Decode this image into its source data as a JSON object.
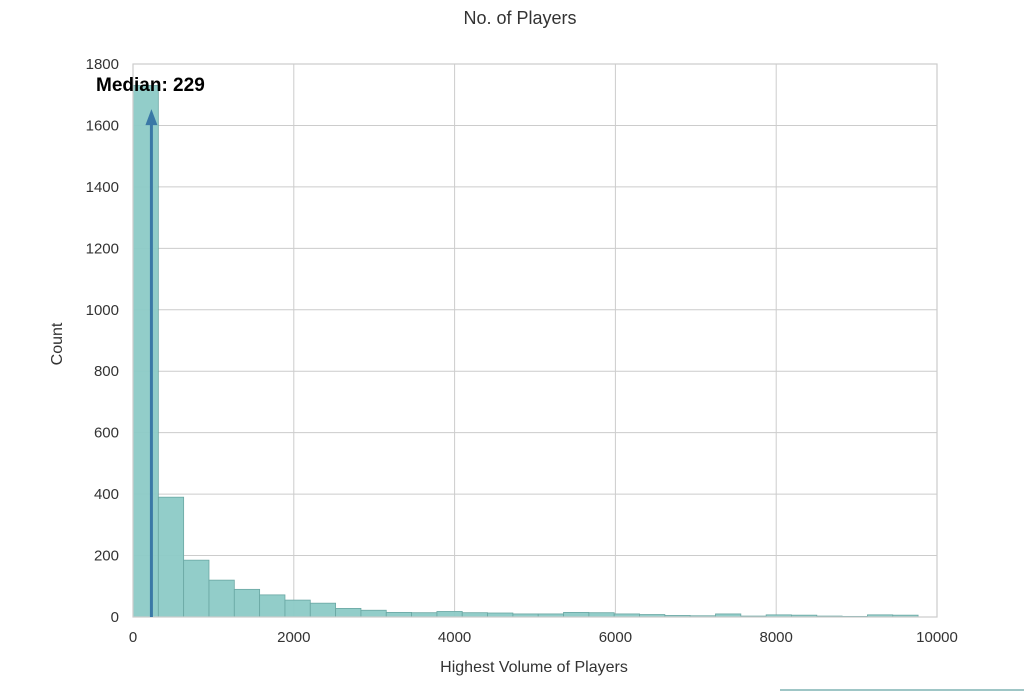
{
  "chart_data": {
    "type": "bar",
    "title": "No. of Players",
    "xlabel": "Highest Volume of Players",
    "ylabel": "Count",
    "xlim": [
      0,
      10000
    ],
    "ylim": [
      0,
      1800
    ],
    "grid": true,
    "x_ticks": [
      "0",
      "2000",
      "4000",
      "6000",
      "8000",
      "10000"
    ],
    "y_ticks": [
      "0",
      "200",
      "400",
      "600",
      "800",
      "1000",
      "1200",
      "1400",
      "1600",
      "1800"
    ],
    "bin_width": 315,
    "bin_starts": [
      0,
      315,
      630,
      945,
      1260,
      1575,
      1890,
      2205,
      2520,
      2835,
      3150,
      3465,
      3780,
      4095,
      4410,
      4725,
      5040,
      5355,
      5670,
      5985,
      6300,
      6615,
      6930,
      7245,
      7560,
      7875,
      8190,
      8505,
      8820,
      9135,
      9450
    ],
    "values": [
      1730,
      390,
      185,
      120,
      90,
      72,
      55,
      45,
      28,
      22,
      15,
      14,
      18,
      14,
      13,
      10,
      10,
      15,
      14,
      10,
      8,
      5,
      4,
      10,
      3,
      7,
      6,
      3,
      2,
      7,
      6
    ],
    "annotation": {
      "text": "Median: 229",
      "x": 229,
      "y_from": 0,
      "y_to": 1640
    }
  }
}
